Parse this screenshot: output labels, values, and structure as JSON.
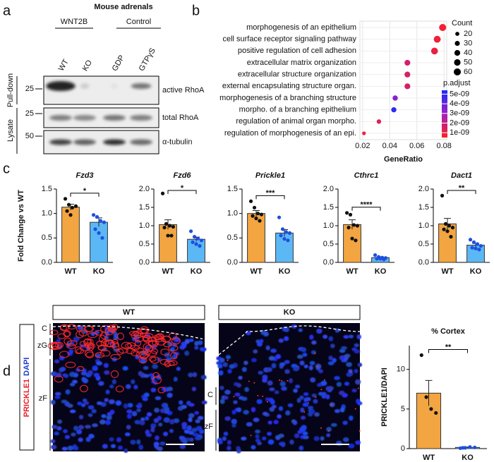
{
  "panel_labels": [
    "a",
    "b",
    "c",
    "d"
  ],
  "blot": {
    "title": "Mouse adrenals",
    "groups": [
      "WNT2B",
      "Control"
    ],
    "lanes": [
      "WT",
      "KO",
      "GDP",
      "GTPγS"
    ],
    "sections": [
      "Pull-down",
      "Lysate"
    ],
    "rows": [
      {
        "marker": "25",
        "label": "active RhoA"
      },
      {
        "marker": "25",
        "label": "total RhoA"
      },
      {
        "marker": "50",
        "label": "α-tubulin"
      }
    ]
  },
  "micro": {
    "stain": [
      "PRICKLE1",
      "DAPI"
    ],
    "panels": [
      {
        "title": "WT",
        "zones": [
          "C",
          "zG",
          "zF"
        ]
      },
      {
        "title": "KO",
        "zones": [
          "C",
          "zF"
        ]
      }
    ]
  },
  "chart_data": [
    {
      "type": "dot",
      "xlabel": "GeneRatio",
      "categories": [
        "morphogenesis of an epithelium",
        "cell surface receptor signaling pathway",
        "positive regulation of cell adhesion",
        "extracellular matrix organization",
        "extracellular structure organization",
        "external encapsulating structure organ.",
        "morphogenesis of a branching structure",
        "morpho. of a branching epithelium",
        "regulation of animal organ morpho.",
        "regulation of morphogenesis of an epi."
      ],
      "gene_ratio": [
        0.079,
        0.075,
        0.073,
        0.053,
        0.053,
        0.053,
        0.044,
        0.043,
        0.032,
        0.021
      ],
      "count": [
        60,
        57,
        55,
        40,
        40,
        40,
        33,
        32,
        24,
        16
      ],
      "p_adjust": [
        8e-10,
        9e-10,
        1e-09,
        1.6e-09,
        1.6e-09,
        1.6e-09,
        3.4e-09,
        5e-09,
        1.3e-09,
        1e-09
      ],
      "xlim": [
        0.018,
        0.082
      ],
      "xticks": [
        0.02,
        0.04,
        0.06,
        0.08
      ],
      "size_title": "Count",
      "size_legend": [
        20,
        30,
        40,
        50,
        60
      ],
      "color_title": "p.adjust",
      "clim": [
        5e-10,
        5.4e-09
      ],
      "color_low": "#ff2020",
      "color_high": "#1a2bff",
      "color_ticks": [
        {
          "value": 5e-09,
          "label": "5e-09"
        },
        {
          "value": 4e-09,
          "label": "4e-09"
        },
        {
          "value": 3e-09,
          "label": "3e-09"
        },
        {
          "value": 2e-09,
          "label": "2e-09"
        },
        {
          "value": 1e-09,
          "label": "1e-09"
        }
      ]
    },
    {
      "type": "bar",
      "title": "Fzd3",
      "ylabel": "Fold Change vs WT",
      "categories": [
        "WT",
        "KO"
      ],
      "colors": [
        "#f2a541",
        "#5cb8f5"
      ],
      "values": [
        1.13,
        0.82
      ],
      "errors": [
        0.06,
        0.09
      ],
      "points": [
        [
          1.3,
          1.18,
          1.12,
          1.15,
          1.05,
          0.97
        ],
        [
          0.97,
          0.93,
          0.85,
          0.82,
          0.68,
          0.6,
          0.5
        ]
      ],
      "significance": "*",
      "ylim": [
        0,
        1.5
      ],
      "yticks": [
        {
          "value": 0,
          "label": "0.0"
        },
        0.5,
        {
          "value": 1,
          "label": "1.0"
        },
        1.5
      ]
    },
    {
      "type": "bar",
      "title": "Fzd6",
      "categories": [
        "WT",
        "KO"
      ],
      "colors": [
        "#f2a541",
        "#5cb8f5"
      ],
      "values": [
        1.03,
        0.63
      ],
      "errors": [
        0.13,
        0.06
      ],
      "points": [
        [
          1.88,
          1.05,
          1.0,
          0.97,
          0.95,
          0.73,
          0.73
        ],
        [
          0.85,
          0.7,
          0.65,
          0.6,
          0.55,
          0.5,
          0.45
        ]
      ],
      "significance": "*",
      "ylim": [
        0,
        2
      ],
      "yticks": [
        {
          "value": 0,
          "label": "0.0"
        },
        0.5,
        {
          "value": 1,
          "label": "1.0"
        },
        1.5,
        {
          "value": 2,
          "label": "2.0"
        }
      ]
    },
    {
      "type": "bar",
      "title": "Prickle1",
      "categories": [
        "WT",
        "KO"
      ],
      "colors": [
        "#f2a541",
        "#5cb8f5"
      ],
      "values": [
        1.0,
        0.6
      ],
      "errors": [
        0.06,
        0.07
      ],
      "points": [
        [
          1.25,
          1.12,
          1.0,
          0.98,
          0.95,
          0.9,
          0.85
        ],
        [
          0.92,
          0.68,
          0.62,
          0.6,
          0.55,
          0.48,
          0.45
        ]
      ],
      "significance": "***",
      "ylim": [
        0,
        1.5
      ],
      "yticks": [
        {
          "value": 0,
          "label": "0.0"
        },
        0.5,
        {
          "value": 1,
          "label": "1.0"
        },
        1.5
      ]
    },
    {
      "type": "bar",
      "title": "Cthrc1",
      "categories": [
        "WT",
        "KO"
      ],
      "colors": [
        "#f2a541",
        "#5cb8f5"
      ],
      "values": [
        1.03,
        0.13
      ],
      "errors": [
        0.13,
        0.02
      ],
      "points": [
        [
          1.35,
          1.3,
          1.02,
          1.0,
          0.95,
          0.65,
          0.6
        ],
        [
          0.2,
          0.15,
          0.13,
          0.12,
          0.1,
          0.1,
          0.08
        ]
      ],
      "significance": "****",
      "ylim": [
        0,
        2
      ],
      "yticks": [
        {
          "value": 0,
          "label": "0.0"
        },
        0.5,
        {
          "value": 1,
          "label": "1.0"
        },
        1.5,
        {
          "value": 2,
          "label": "2.0"
        }
      ]
    },
    {
      "type": "bar",
      "title": "Dact1",
      "categories": [
        "WT",
        "KO"
      ],
      "colors": [
        "#f2a541",
        "#5cb8f5"
      ],
      "values": [
        1.05,
        0.47
      ],
      "errors": [
        0.15,
        0.05
      ],
      "points": [
        [
          1.82,
          1.05,
          1.0,
          0.95,
          0.9,
          0.85,
          0.7
        ],
        [
          0.62,
          0.55,
          0.5,
          0.45,
          0.4,
          0.38,
          0.35
        ]
      ],
      "significance": "**",
      "ylim": [
        0,
        2
      ],
      "yticks": [
        {
          "value": 0,
          "label": "0.0"
        },
        0.5,
        {
          "value": 1,
          "label": "1.0"
        },
        1.5,
        {
          "value": 2,
          "label": "2.0"
        }
      ]
    },
    {
      "type": "bar",
      "title": "% Cortex",
      "ylabel": "PRICKLE1/DAPI",
      "categories": [
        "WT",
        "KO"
      ],
      "colors": [
        "#f2a541",
        "#5cb8f5"
      ],
      "values": [
        7.0,
        0.15
      ],
      "errors": [
        1.6,
        0.05
      ],
      "points": [
        [
          11.8,
          6.5,
          5.0,
          4.5
        ],
        [
          0.05,
          0.1,
          0.2,
          0.15,
          0.1
        ]
      ],
      "significance": "**",
      "ylim": [
        0,
        13
      ],
      "yticks": [
        0,
        5,
        10
      ]
    }
  ]
}
